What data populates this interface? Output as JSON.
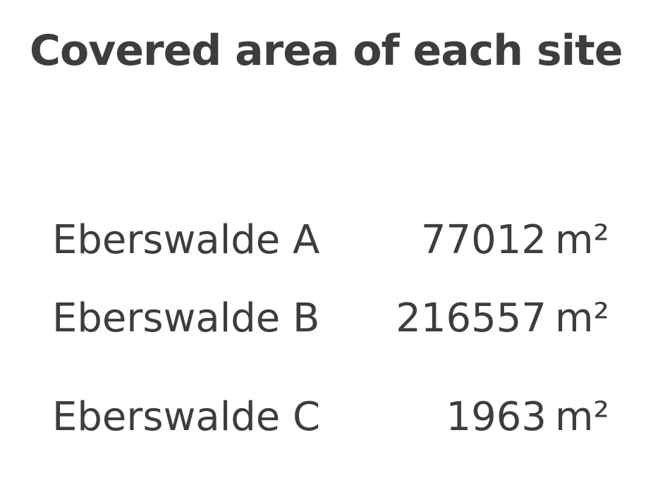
{
  "title": "Covered area of each site",
  "sites": [
    {
      "name": "Eberswalde A",
      "area": "77012",
      "unit": "m²"
    },
    {
      "name": "Eberswalde B",
      "area": "216557",
      "unit": "m²"
    },
    {
      "name": "Eberswalde C",
      "area": "1963",
      "unit": "m²"
    }
  ],
  "colors": {
    "text": "#3d3d3d",
    "background": "#ffffff"
  }
}
